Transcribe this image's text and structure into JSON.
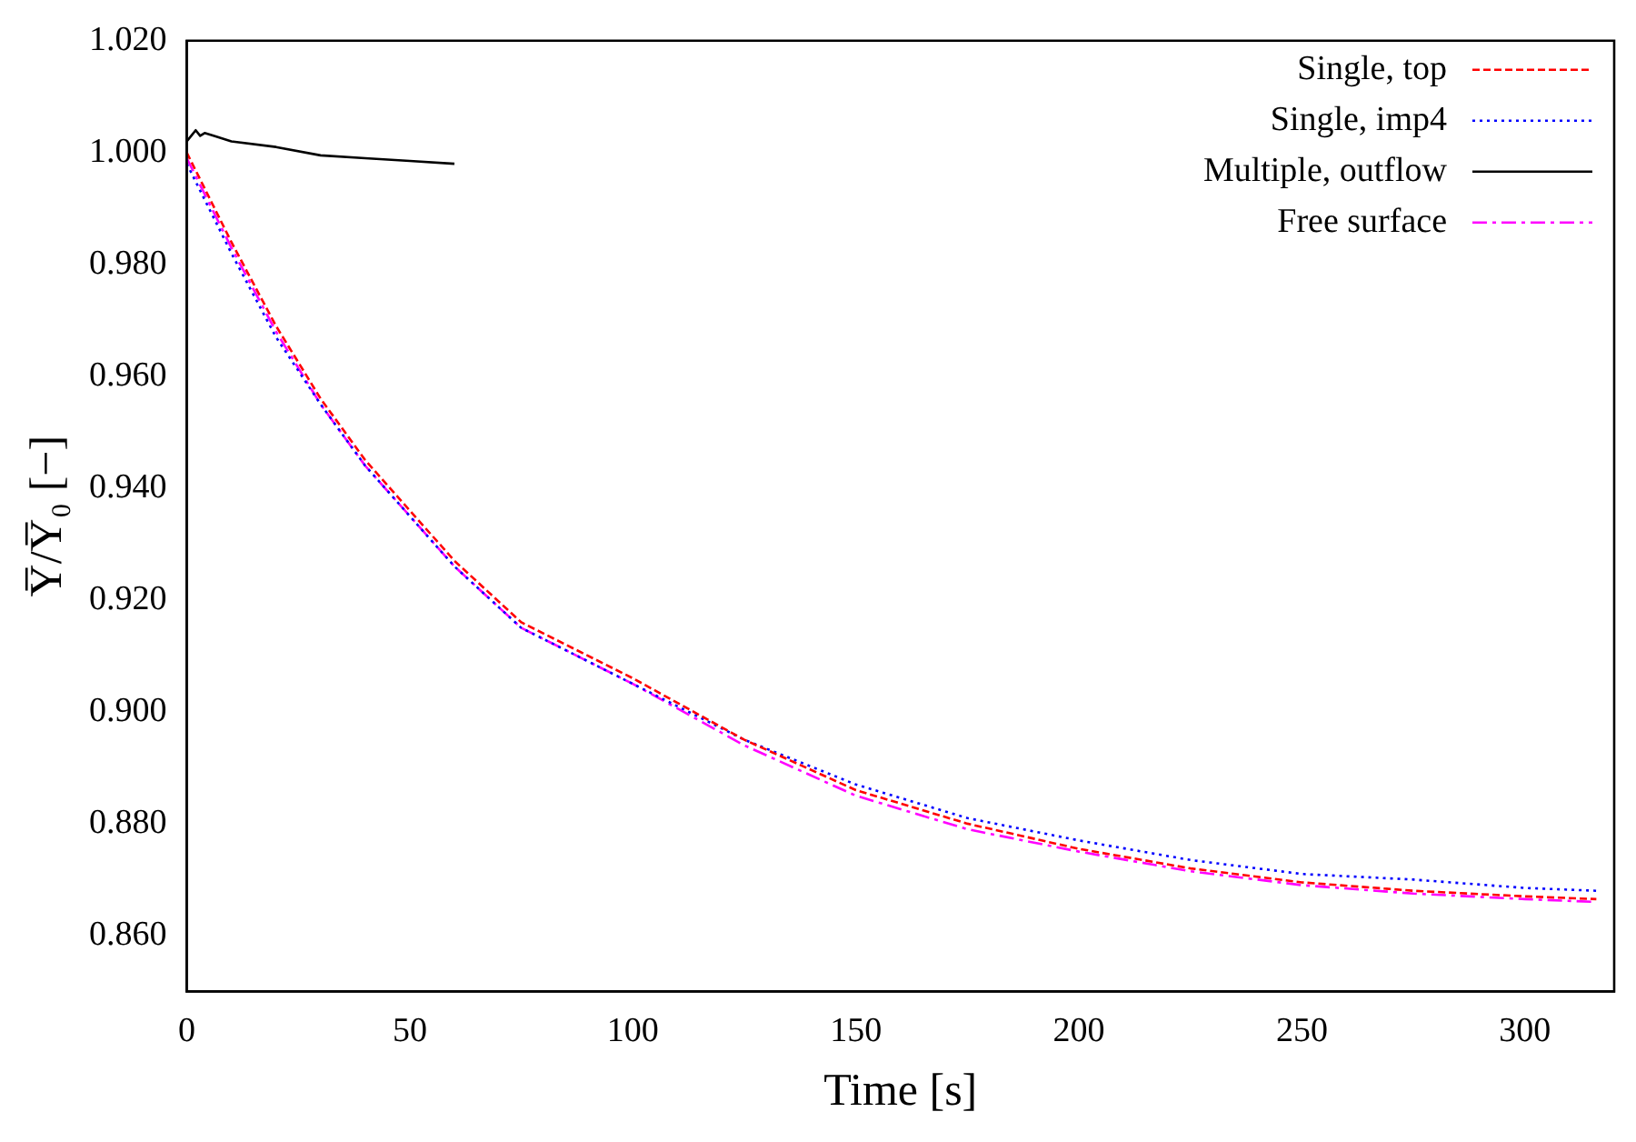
{
  "chart_data": {
    "type": "line",
    "xlabel": "Time [s]",
    "ylabel": "Y̅/Y̅₀ [−]",
    "xlim": [
      0,
      320
    ],
    "ylim": [
      0.85,
      1.02
    ],
    "xticks": [
      0,
      50,
      100,
      150,
      200,
      250,
      300
    ],
    "yticks": [
      {
        "value": 0.86,
        "label": "0.860"
      },
      {
        "value": 0.88,
        "label": "0.880"
      },
      {
        "value": 0.9,
        "label": "0.900"
      },
      {
        "value": 0.92,
        "label": "0.920"
      },
      {
        "value": 0.94,
        "label": "0.940"
      },
      {
        "value": 0.96,
        "label": "0.960"
      },
      {
        "value": 0.98,
        "label": "0.980"
      },
      {
        "value": 1.0,
        "label": "1.000"
      },
      {
        "value": 1.02,
        "label": "1.020"
      }
    ],
    "grid": false,
    "legend": "top right",
    "marker": "none",
    "series": [
      {
        "name": "Single, top",
        "color": "#ff0000",
        "line_style": "dashed",
        "x": [
          0,
          10,
          20,
          30,
          40,
          50,
          60,
          75,
          100,
          125,
          150,
          175,
          200,
          225,
          250,
          275,
          300,
          316
        ],
        "values": [
          1.0,
          0.984,
          0.969,
          0.956,
          0.945,
          0.936,
          0.927,
          0.916,
          0.906,
          0.895,
          0.886,
          0.88,
          0.8755,
          0.872,
          0.8695,
          0.868,
          0.867,
          0.8665
        ]
      },
      {
        "name": "Single, imp4",
        "color": "#0000ff",
        "line_style": "dotted",
        "x": [
          0,
          10,
          20,
          30,
          40,
          50,
          60,
          75,
          100,
          125,
          150,
          175,
          200,
          225,
          250,
          275,
          300,
          316
        ],
        "values": [
          0.998,
          0.982,
          0.967,
          0.955,
          0.944,
          0.935,
          0.926,
          0.915,
          0.905,
          0.895,
          0.887,
          0.881,
          0.877,
          0.8735,
          0.871,
          0.87,
          0.8685,
          0.868
        ]
      },
      {
        "name": "Multiple, outflow",
        "color": "#000000",
        "line_style": "solid",
        "x": [
          0,
          1,
          2,
          3,
          4,
          6,
          10,
          20,
          30,
          40,
          50,
          60
        ],
        "values": [
          1.002,
          1.003,
          1.004,
          1.003,
          1.0035,
          1.003,
          1.002,
          1.001,
          0.9995,
          0.999,
          0.9985,
          0.998
        ]
      },
      {
        "name": "Free surface",
        "color": "#ff00ff",
        "line_style": "dashdot",
        "x": [
          0,
          10,
          20,
          30,
          40,
          50,
          60,
          75,
          100,
          125,
          150,
          175,
          200,
          225,
          250,
          275,
          300,
          316
        ],
        "values": [
          0.999,
          0.983,
          0.968,
          0.955,
          0.944,
          0.935,
          0.926,
          0.915,
          0.905,
          0.894,
          0.885,
          0.879,
          0.875,
          0.8715,
          0.869,
          0.8675,
          0.8665,
          0.866
        ]
      }
    ]
  }
}
